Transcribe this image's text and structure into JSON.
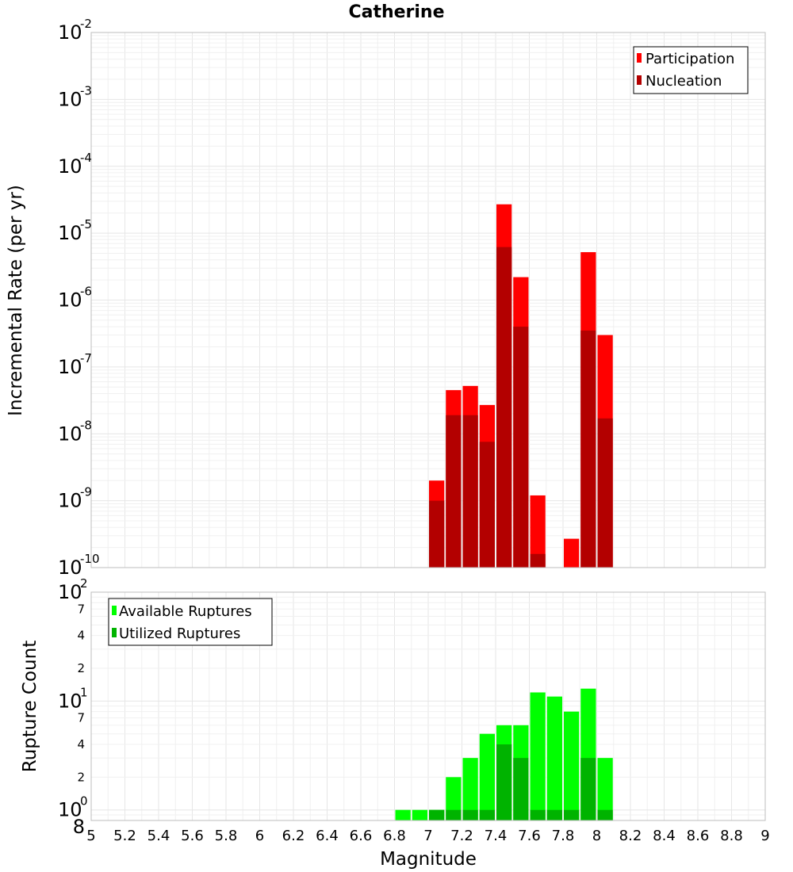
{
  "chart_data": [
    {
      "type": "bar",
      "title": "Catherine",
      "xlabel": "",
      "ylabel": "Incremental Rate (per yr)",
      "yscale": "log",
      "ylim": [
        1e-10,
        0.01
      ],
      "xlim": [
        5,
        9
      ],
      "bin_width": 0.1,
      "y_tick_labels": [
        {
          "base": "10",
          "exp": "-10"
        },
        {
          "base": "10",
          "exp": "-9"
        },
        {
          "base": "10",
          "exp": "-8"
        },
        {
          "base": "10",
          "exp": "-7"
        },
        {
          "base": "10",
          "exp": "-6"
        },
        {
          "base": "10",
          "exp": "-5"
        },
        {
          "base": "10",
          "exp": "-4"
        },
        {
          "base": "10",
          "exp": "-3"
        },
        {
          "base": "10",
          "exp": "-2"
        }
      ],
      "legend": [
        "Participation",
        "Nucleation"
      ],
      "legend_position": "top-right",
      "series": [
        {
          "name": "Participation",
          "color": "#ff0000",
          "x": [
            7.0,
            7.1,
            7.2,
            7.3,
            7.4,
            7.5,
            7.6,
            7.8,
            7.9,
            8.0
          ],
          "values": [
            2e-09,
            4.5e-08,
            5.2e-08,
            2.7e-08,
            2.7e-05,
            2.2e-06,
            1.2e-09,
            2.7e-10,
            5.2e-06,
            3e-07
          ]
        },
        {
          "name": "Nucleation",
          "color": "#b30000",
          "x": [
            7.0,
            7.1,
            7.2,
            7.3,
            7.4,
            7.5,
            7.6,
            7.9,
            8.0
          ],
          "values": [
            1e-09,
            1.9e-08,
            1.9e-08,
            7.6e-09,
            6.2e-06,
            4e-07,
            1.6e-10,
            3.5e-07,
            1.7e-08
          ]
        }
      ]
    },
    {
      "type": "bar",
      "title": "",
      "xlabel": "Magnitude",
      "ylabel": "Rupture Count",
      "yscale": "log",
      "ylim": [
        0.8,
        100
      ],
      "xlim": [
        5,
        9
      ],
      "bin_width": 0.1,
      "y_tick_labels": [
        {
          "base": "10",
          "exp": "0"
        },
        {
          "base": "10",
          "exp": "1"
        },
        {
          "base": "10",
          "exp": "2"
        }
      ],
      "y_minor_tick_labels": [
        {
          "value": 0.8,
          "label": "8"
        },
        {
          "value": 2,
          "label": "2"
        },
        {
          "value": 4,
          "label": "4"
        },
        {
          "value": 7,
          "label": "7"
        },
        {
          "value": 20,
          "label": "2"
        },
        {
          "value": 40,
          "label": "4"
        },
        {
          "value": 70,
          "label": "7"
        }
      ],
      "x_ticks": [
        5,
        5.2,
        5.4,
        5.6,
        5.8,
        6,
        6.2,
        6.4,
        6.6,
        6.8,
        7,
        7.2,
        7.4,
        7.6,
        7.8,
        8,
        8.2,
        8.4,
        8.6,
        8.8,
        9
      ],
      "x_tick_labels": [
        "5",
        "5.2",
        "5.4",
        "5.6",
        "5.8",
        "6",
        "6.2",
        "6.4",
        "6.6",
        "6.8",
        "7",
        "7.2",
        "7.4",
        "7.6",
        "7.8",
        "8",
        "8.2",
        "8.4",
        "8.6",
        "8.8",
        "9"
      ],
      "legend": [
        "Available Ruptures",
        "Utilized Ruptures"
      ],
      "legend_position": "top-left",
      "series": [
        {
          "name": "Available Ruptures",
          "color": "#00ff00",
          "x": [
            6.8,
            6.9,
            7.0,
            7.1,
            7.2,
            7.3,
            7.4,
            7.5,
            7.6,
            7.7,
            7.8,
            7.9,
            8.0
          ],
          "values": [
            1,
            1,
            1,
            2,
            3,
            5,
            6,
            6,
            12,
            11,
            8,
            13,
            3
          ]
        },
        {
          "name": "Utilized Ruptures",
          "color": "#00b300",
          "x": [
            7.0,
            7.1,
            7.2,
            7.3,
            7.4,
            7.5,
            7.6,
            7.7,
            7.8,
            7.9,
            8.0
          ],
          "values": [
            1,
            1,
            1,
            1,
            4,
            3,
            1,
            1,
            1,
            3,
            1
          ]
        }
      ]
    }
  ]
}
